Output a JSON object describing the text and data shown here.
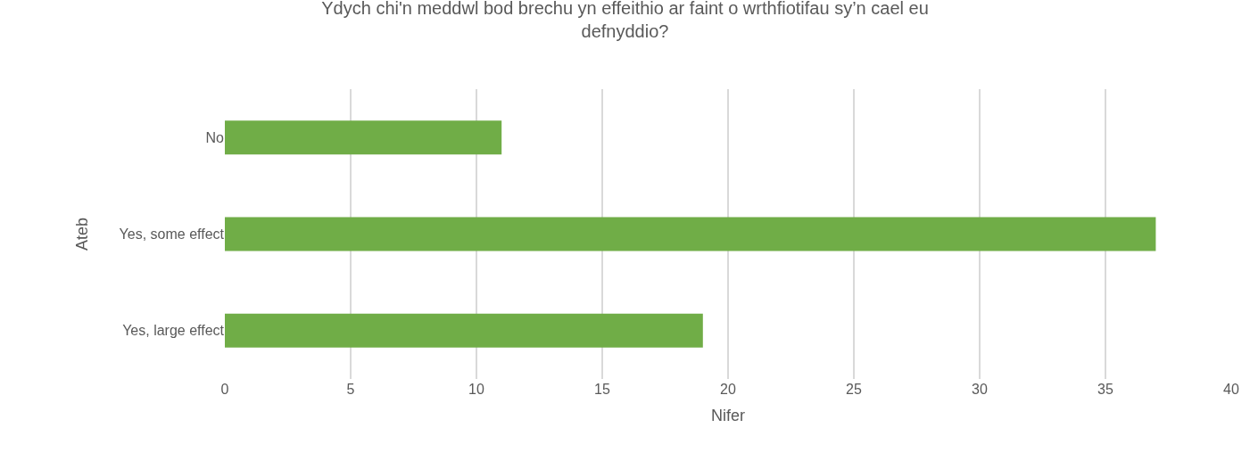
{
  "chart_data": {
    "type": "bar",
    "orientation": "horizontal",
    "title": "Ydych chi'n meddwl bod brechu yn effeithio ar faint o wrthfiotifau sy’n cael eu defnyddio?",
    "xlabel": "Nifer",
    "ylabel": "Ateb",
    "categories": [
      "No",
      "Yes, some effect",
      "Yes, large effect"
    ],
    "values": [
      11,
      37,
      19
    ],
    "color": "#70ad47",
    "xlim": [
      0,
      40
    ],
    "xticks": [
      0,
      5,
      10,
      15,
      20,
      25,
      30,
      35,
      40
    ],
    "grid": "x",
    "legend": false
  }
}
